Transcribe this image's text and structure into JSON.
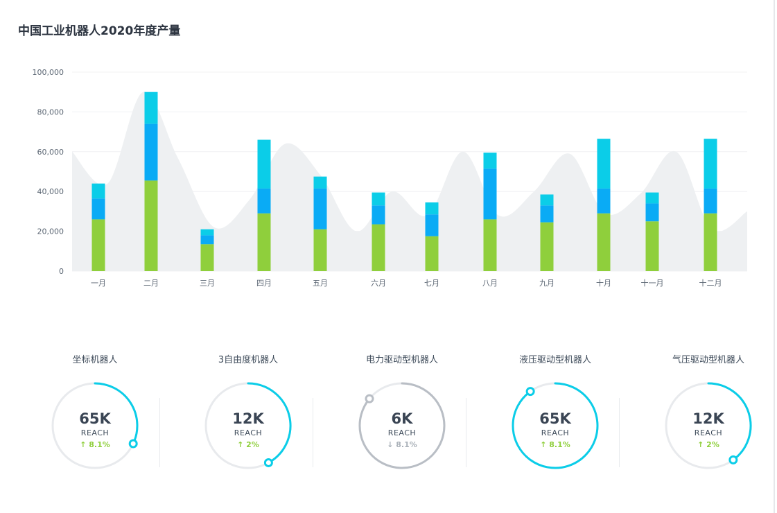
{
  "title": "中国工业机器人2020年度产量",
  "colors": {
    "green": "#8fcf3c",
    "blue": "#0aabf5",
    "cyan": "#0bcde8",
    "area": "#eef0f2",
    "track": "#e8eaed",
    "grey_arc": "#b9bec5"
  },
  "chart_data": {
    "type": "bar",
    "stacked": true,
    "title": "中国工业机器人2020年度产量",
    "categories": [
      "一月",
      "二月",
      "三月",
      "四月",
      "五月",
      "六月",
      "七月",
      "八月",
      "九月",
      "十月",
      "十一月",
      "十二月"
    ],
    "series": [
      {
        "values": [
          26000,
          45500,
          13500,
          29000,
          21000,
          23500,
          17500,
          26000,
          24500,
          29000,
          25000,
          29000
        ]
      },
      {
        "values": [
          10500,
          28500,
          4500,
          12500,
          20500,
          9500,
          11000,
          25500,
          8500,
          12500,
          9000,
          12500
        ]
      },
      {
        "values": [
          7500,
          16000,
          3000,
          24500,
          6000,
          6500,
          6000,
          8000,
          5500,
          25000,
          5500,
          25000
        ]
      }
    ],
    "background_area": [
      60000,
      44000,
      90000,
      56000,
      22000,
      36000,
      64000,
      48000,
      20000,
      40000,
      28000,
      60000,
      28000,
      40000,
      59000,
      29000,
      39000,
      60000,
      21000,
      30000
    ],
    "ylim": [
      0,
      100000
    ],
    "yticks": [
      "100,000",
      "80,000",
      "60,000",
      "40,000",
      "20,000",
      "0"
    ],
    "grid": true
  },
  "gauges": [
    {
      "label": "坐标机器人",
      "value": "65K",
      "reach": "REACH",
      "delta": "↑ 8.1%",
      "progress": 0.32,
      "color": "#0bcde8",
      "trend": "up"
    },
    {
      "label": "3自由度机器人",
      "value": "12K",
      "reach": "REACH",
      "delta": "↑ 2%",
      "progress": 0.42,
      "color": "#0bcde8",
      "trend": "up"
    },
    {
      "label": "电力驱动型机器人",
      "value": "6K",
      "reach": "REACH",
      "delta": "↓ 8.1%",
      "progress": 0.86,
      "color": "#b9bec5",
      "trend": "down"
    },
    {
      "label": "液压驱动型机器人",
      "value": "65K",
      "reach": "REACH",
      "delta": "↑ 8.1%",
      "progress": 0.9,
      "color": "#0bcde8",
      "trend": "up"
    },
    {
      "label": "气压驱动型机器人",
      "value": "12K",
      "reach": "REACH",
      "delta": "↑ 2%",
      "progress": 0.4,
      "color": "#0bcde8",
      "trend": "up"
    }
  ]
}
